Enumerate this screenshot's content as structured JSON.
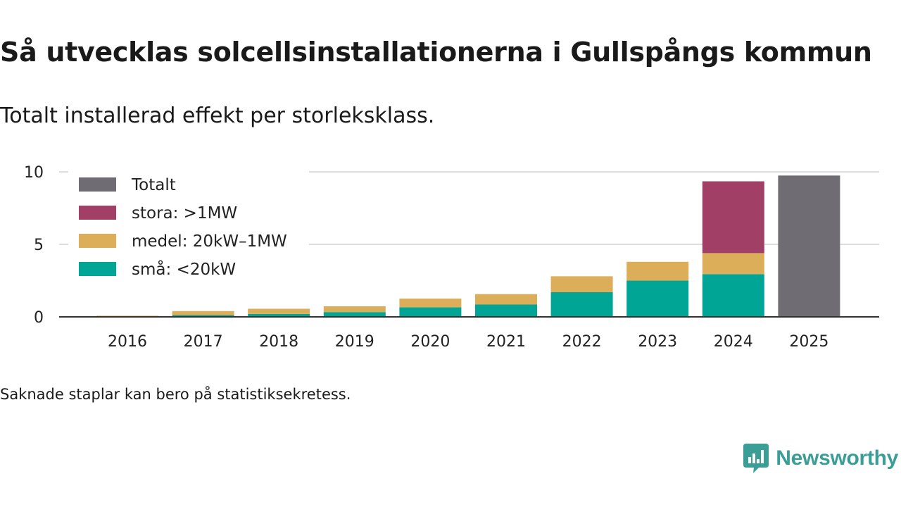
{
  "title": "Så utvecklas solcellsinstallationerna i Gullspångs kommun",
  "subtitle": "Totalt installerad effekt per storleksklass.",
  "note": "Saknade staplar kan bero på statistiksekretess.",
  "brand": {
    "name": "Newsworthy",
    "color": "#3a9e97",
    "icon": "bar-chart-speech-bubble-icon"
  },
  "chart_data": {
    "type": "bar",
    "stacked": true,
    "title": "",
    "xlabel": "",
    "ylabel": "",
    "ylim": [
      0,
      10.2
    ],
    "yticks": [
      0,
      5,
      10
    ],
    "grid": true,
    "legend_position": "top-left",
    "categories": [
      "2016",
      "2017",
      "2018",
      "2019",
      "2020",
      "2021",
      "2022",
      "2023",
      "2024",
      "2025"
    ],
    "series": [
      {
        "name": "små: <20kW",
        "color": "#00a596",
        "values": [
          0.02,
          0.12,
          0.2,
          0.33,
          0.66,
          0.85,
          1.7,
          2.5,
          2.95,
          null
        ]
      },
      {
        "name": "medel: 20kW–1MW",
        "color": "#dcae5a",
        "values": [
          0.06,
          0.28,
          0.36,
          0.4,
          0.6,
          0.72,
          1.1,
          1.3,
          1.45,
          null
        ]
      },
      {
        "name": "stora: >1MW",
        "color": "#a23f67",
        "values": [
          null,
          null,
          null,
          null,
          null,
          null,
          null,
          null,
          4.95,
          null
        ]
      },
      {
        "name": "Totalt",
        "color": "#6f6d73",
        "values": [
          null,
          null,
          null,
          null,
          null,
          null,
          null,
          null,
          null,
          9.75
        ]
      }
    ],
    "legend_order": [
      "Totalt",
      "stora: >1MW",
      "medel: 20kW–1MW",
      "små: <20kW"
    ]
  }
}
